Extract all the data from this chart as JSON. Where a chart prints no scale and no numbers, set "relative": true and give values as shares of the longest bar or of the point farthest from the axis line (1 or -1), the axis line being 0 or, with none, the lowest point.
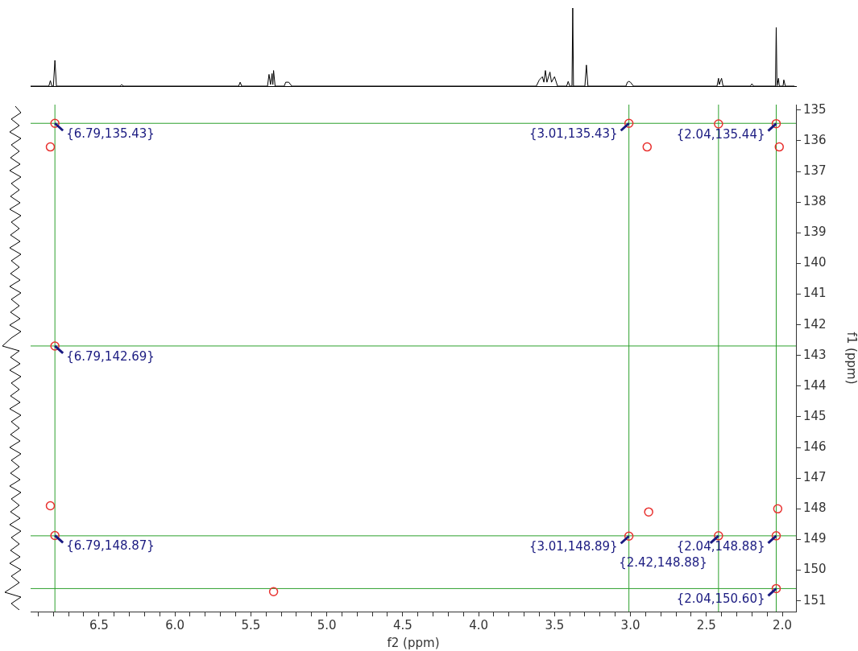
{
  "chart_data": [
    {
      "type": "line",
      "relative": true,
      "tick_labels": false,
      "color": "#000000",
      "xlim": [
        6.95,
        1.91
      ],
      "x": [
        6.95,
        6.83,
        6.82,
        6.81,
        6.8,
        6.79,
        6.78,
        6.36,
        6.35,
        6.34,
        5.58,
        5.57,
        5.56,
        5.39,
        5.38,
        5.37,
        5.36,
        5.355,
        5.35,
        5.34,
        5.28,
        5.27,
        5.25,
        5.23,
        3.62,
        3.6,
        3.58,
        3.57,
        3.56,
        3.55,
        3.53,
        3.52,
        3.5,
        3.48,
        3.42,
        3.41,
        3.4,
        3.385,
        3.38,
        3.375,
        3.3,
        3.29,
        3.28,
        3.03,
        3.02,
        3.01,
        3.0,
        2.98,
        2.43,
        2.42,
        2.415,
        2.4,
        2.39,
        2.21,
        2.2,
        2.19,
        2.045,
        2.04,
        2.035,
        2.025,
        2.02,
        1.995,
        1.99,
        1.98,
        1.92
      ],
      "values": [
        0,
        0,
        0.07,
        0,
        0,
        0.33,
        0,
        0,
        0.02,
        0,
        0,
        0.05,
        0,
        0,
        0.15,
        0.02,
        0.16,
        0.02,
        0.2,
        0,
        0,
        0.05,
        0.05,
        0,
        0,
        0.08,
        0.12,
        0.05,
        0.2,
        0.05,
        0.18,
        0.05,
        0.12,
        0,
        0,
        0.06,
        0,
        0,
        1,
        0,
        0,
        0.27,
        0,
        0,
        0.05,
        0.06,
        0.05,
        0,
        0,
        0.1,
        0.02,
        0.1,
        0,
        0,
        0.03,
        0,
        0,
        0.75,
        0,
        0.1,
        0,
        0,
        0.08,
        0,
        0
      ]
    },
    {
      "type": "scatter",
      "xlabel": "f2 (ppm)",
      "ylabel": "f1 (ppm)",
      "color": "#e8312f",
      "marker": "circle",
      "xlim": [
        6.95,
        1.91
      ],
      "ylim": [
        151.35,
        134.82
      ],
      "xticks": [
        {
          "value": 6.9,
          "label": null
        },
        {
          "value": 6.8,
          "label": null
        },
        {
          "value": 6.7,
          "label": null
        },
        {
          "value": 6.6,
          "label": null
        },
        6.5,
        {
          "value": 6.4,
          "label": null
        },
        {
          "value": 6.3,
          "label": null
        },
        {
          "value": 6.2,
          "label": null
        },
        {
          "value": 6.1,
          "label": null
        },
        {
          "value": 6,
          "label": "6.0"
        },
        {
          "value": 5.9,
          "label": null
        },
        {
          "value": 5.8,
          "label": null
        },
        {
          "value": 5.7,
          "label": null
        },
        {
          "value": 5.6,
          "label": null
        },
        5.5,
        {
          "value": 5.4,
          "label": null
        },
        {
          "value": 5.3,
          "label": null
        },
        {
          "value": 5.2,
          "label": null
        },
        {
          "value": 5.1,
          "label": null
        },
        {
          "value": 5,
          "label": "5.0"
        },
        {
          "value": 4.9,
          "label": null
        },
        {
          "value": 4.8,
          "label": null
        },
        {
          "value": 4.7,
          "label": null
        },
        {
          "value": 4.6,
          "label": null
        },
        4.5,
        {
          "value": 4.4,
          "label": null
        },
        {
          "value": 4.3,
          "label": null
        },
        {
          "value": 4.2,
          "label": null
        },
        {
          "value": 4.1,
          "label": null
        },
        {
          "value": 4,
          "label": "4.0"
        },
        {
          "value": 3.9,
          "label": null
        },
        {
          "value": 3.8,
          "label": null
        },
        {
          "value": 3.7,
          "label": null
        },
        {
          "value": 3.6,
          "label": null
        },
        3.5,
        {
          "value": 3.4,
          "label": null
        },
        {
          "value": 3.3,
          "label": null
        },
        {
          "value": 3.2,
          "label": null
        },
        {
          "value": 3.1,
          "label": null
        },
        {
          "value": 3,
          "label": "3.0"
        },
        {
          "value": 2.9,
          "label": null
        },
        {
          "value": 2.8,
          "label": null
        },
        {
          "value": 2.7,
          "label": null
        },
        {
          "value": 2.6,
          "label": null
        },
        2.5,
        {
          "value": 2.4,
          "label": null
        },
        {
          "value": 2.3,
          "label": null
        },
        {
          "value": 2.2,
          "label": null
        },
        {
          "value": 2.1,
          "label": null
        },
        {
          "value": 2,
          "label": "2.0"
        }
      ],
      "yticks": [
        135,
        136,
        137,
        138,
        139,
        140,
        141,
        142,
        143,
        144,
        145,
        146,
        147,
        148,
        149,
        150,
        151
      ],
      "x": [
        6.79,
        3.01,
        2.42,
        2.04,
        6.79,
        6.79,
        3.01,
        2.42,
        2.04,
        2.04,
        6.82,
        2.02,
        2.89,
        2.88,
        2.03,
        6.82,
        5.35
      ],
      "values": [
        135.43,
        135.43,
        135.45,
        135.44,
        142.69,
        148.87,
        148.89,
        148.88,
        148.88,
        150.6,
        136.2,
        136.2,
        136.2,
        148.1,
        148.0,
        147.9,
        150.7
      ],
      "ref_lines": [
        {
          "axis": "x",
          "value": 6.79,
          "color": "#2ca02c"
        },
        {
          "axis": "x",
          "value": 3.01,
          "color": "#2ca02c"
        },
        {
          "axis": "x",
          "value": 2.42,
          "color": "#2ca02c"
        },
        {
          "axis": "x",
          "value": 2.04,
          "color": "#2ca02c"
        },
        {
          "axis": "y",
          "value": 135.43,
          "color": "#2ca02c"
        },
        {
          "axis": "y",
          "value": 142.69,
          "color": "#2ca02c"
        },
        {
          "axis": "y",
          "value": 148.88,
          "color": "#2ca02c"
        },
        {
          "axis": "y",
          "value": 150.6,
          "color": "#2ca02c"
        }
      ],
      "annotations": [
        {
          "text": "{6.79,135.43}",
          "x": 6.79,
          "y": 135.43
        },
        {
          "text": "{3.01,135.43}",
          "x": 3.01,
          "y": 135.43
        },
        {
          "text": "{2.04,135.44}",
          "x": 2.04,
          "y": 135.44
        },
        {
          "text": "{6.79,142.69}",
          "x": 6.79,
          "y": 142.69
        },
        {
          "text": "{6.79,148.87}",
          "x": 6.79,
          "y": 148.87
        },
        {
          "text": "{3.01,148.89}",
          "x": 3.01,
          "y": 148.89
        },
        {
          "text": "{2.42,148.88}",
          "x": 2.42,
          "y": 148.88
        },
        {
          "text": "{2.04,148.88}",
          "x": 2.04,
          "y": 148.88
        },
        {
          "text": "{2.04,150.60}",
          "x": 2.04,
          "y": 150.6
        }
      ]
    }
  ]
}
